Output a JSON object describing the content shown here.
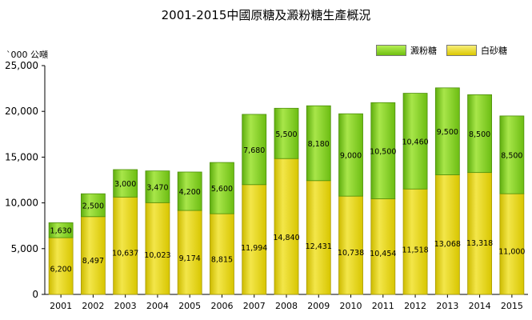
{
  "chart_data": {
    "type": "bar",
    "stacked": true,
    "title": "2001-2015中國原糖及澱粉糖生產概況",
    "ylabel": "`000 公噸",
    "xlabel": "",
    "ylim": [
      0,
      25000
    ],
    "yticks": [
      0,
      5000,
      10000,
      15000,
      20000,
      25000
    ],
    "grid": false,
    "legend_position": "top-right",
    "categories": [
      "2001",
      "2002",
      "2003",
      "2004",
      "2005",
      "2006",
      "2007",
      "2008",
      "2009",
      "2010",
      "2011",
      "2012",
      "2013",
      "2014",
      "2015"
    ],
    "series": [
      {
        "name": "白砂糖",
        "color": "#e6d400",
        "values": [
          6200,
          8497,
          10637,
          10023,
          9174,
          8815,
          11994,
          14840,
          12431,
          10738,
          10454,
          11518,
          13068,
          13318,
          11000
        ]
      },
      {
        "name": "澱粉糖",
        "color": "#7fcf1a",
        "values": [
          1630,
          2500,
          3000,
          3470,
          4200,
          5600,
          7680,
          5500,
          8180,
          9000,
          10500,
          10460,
          9500,
          8500,
          8500
        ]
      }
    ]
  }
}
